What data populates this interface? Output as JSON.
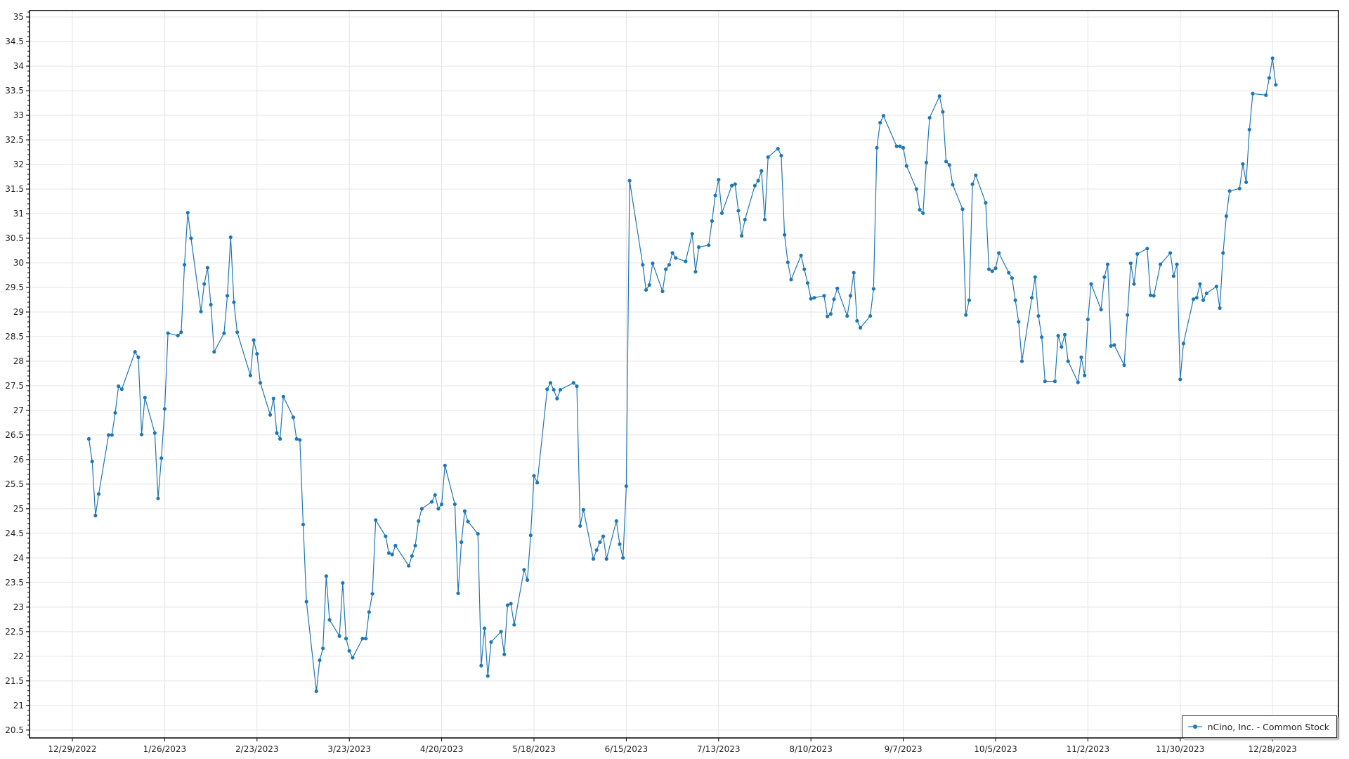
{
  "chart_data": {
    "type": "line",
    "title": "",
    "xlabel": "",
    "ylabel": "",
    "xlim": [
      "2022-12-16",
      "2024-01-17"
    ],
    "ylim": [
      20.34,
      35.13
    ],
    "yticks": [
      "20.5",
      "21",
      "21.5",
      "22",
      "22.5",
      "23",
      "23.5",
      "24",
      "24.5",
      "25",
      "25.5",
      "26",
      "26.5",
      "27",
      "27.5",
      "28",
      "28.5",
      "29",
      "29.5",
      "30",
      "30.5",
      "31",
      "31.5",
      "32",
      "32.5",
      "33",
      "33.5",
      "34",
      "34.5",
      "35"
    ],
    "xticks": [
      {
        "date": "2022-12-29",
        "label": "12/29/2022"
      },
      {
        "date": "2023-01-26",
        "label": "1/26/2023"
      },
      {
        "date": "2023-02-23",
        "label": "2/23/2023"
      },
      {
        "date": "2023-03-23",
        "label": "3/23/2023"
      },
      {
        "date": "2023-04-20",
        "label": "4/20/2023"
      },
      {
        "date": "2023-05-18",
        "label": "5/18/2023"
      },
      {
        "date": "2023-06-15",
        "label": "6/15/2023"
      },
      {
        "date": "2023-07-13",
        "label": "7/13/2023"
      },
      {
        "date": "2023-08-10",
        "label": "8/10/2023"
      },
      {
        "date": "2023-09-07",
        "label": "9/7/2023"
      },
      {
        "date": "2023-10-05",
        "label": "10/5/2023"
      },
      {
        "date": "2023-11-02",
        "label": "11/2/2023"
      },
      {
        "date": "2023-11-30",
        "label": "11/30/2023"
      },
      {
        "date": "2023-12-28",
        "label": "12/28/2023"
      }
    ],
    "grid": true,
    "legend_position": "bottom-right",
    "series": [
      {
        "name": "nCino, Inc. - Common Stock",
        "color": "#1f77b4",
        "points": [
          [
            "2023-01-03",
            26.42
          ],
          [
            "2023-01-04",
            25.96
          ],
          [
            "2023-01-05",
            24.86
          ],
          [
            "2023-01-06",
            25.3
          ],
          [
            "2023-01-09",
            26.5
          ],
          [
            "2023-01-10",
            26.5
          ],
          [
            "2023-01-11",
            26.95
          ],
          [
            "2023-01-12",
            27.49
          ],
          [
            "2023-01-13",
            27.43
          ],
          [
            "2023-01-17",
            28.19
          ],
          [
            "2023-01-18",
            28.08
          ],
          [
            "2023-01-19",
            26.51
          ],
          [
            "2023-01-20",
            27.26
          ],
          [
            "2023-01-23",
            26.54
          ],
          [
            "2023-01-24",
            25.21
          ],
          [
            "2023-01-25",
            26.03
          ],
          [
            "2023-01-26",
            27.03
          ],
          [
            "2023-01-27",
            28.57
          ],
          [
            "2023-01-30",
            28.52
          ],
          [
            "2023-01-31",
            28.59
          ],
          [
            "2023-02-01",
            29.96
          ],
          [
            "2023-02-02",
            31.02
          ],
          [
            "2023-02-03",
            30.5
          ],
          [
            "2023-02-06",
            29.01
          ],
          [
            "2023-02-07",
            29.57
          ],
          [
            "2023-02-08",
            29.9
          ],
          [
            "2023-02-09",
            29.15
          ],
          [
            "2023-02-10",
            28.19
          ],
          [
            "2023-02-13",
            28.57
          ],
          [
            "2023-02-14",
            29.33
          ],
          [
            "2023-02-15",
            30.52
          ],
          [
            "2023-02-16",
            29.2
          ],
          [
            "2023-02-17",
            28.59
          ],
          [
            "2023-02-21",
            27.71
          ],
          [
            "2023-02-22",
            28.43
          ],
          [
            "2023-02-23",
            28.15
          ],
          [
            "2023-02-24",
            27.56
          ],
          [
            "2023-02-27",
            26.91
          ],
          [
            "2023-02-28",
            27.24
          ],
          [
            "2023-03-01",
            26.54
          ],
          [
            "2023-03-02",
            26.42
          ],
          [
            "2023-03-03",
            27.28
          ],
          [
            "2023-03-06",
            26.86
          ],
          [
            "2023-03-07",
            26.42
          ],
          [
            "2023-03-08",
            26.4
          ],
          [
            "2023-03-09",
            24.68
          ],
          [
            "2023-03-10",
            23.11
          ],
          [
            "2023-03-13",
            21.29
          ],
          [
            "2023-03-14",
            21.92
          ],
          [
            "2023-03-15",
            22.16
          ],
          [
            "2023-03-16",
            23.63
          ],
          [
            "2023-03-17",
            22.74
          ],
          [
            "2023-03-20",
            22.41
          ],
          [
            "2023-03-21",
            23.49
          ],
          [
            "2023-03-22",
            22.36
          ],
          [
            "2023-03-23",
            22.11
          ],
          [
            "2023-03-24",
            21.97
          ],
          [
            "2023-03-27",
            22.36
          ],
          [
            "2023-03-28",
            22.36
          ],
          [
            "2023-03-29",
            22.9
          ],
          [
            "2023-03-30",
            23.27
          ],
          [
            "2023-03-31",
            24.77
          ],
          [
            "2023-04-03",
            24.44
          ],
          [
            "2023-04-04",
            24.1
          ],
          [
            "2023-04-05",
            24.07
          ],
          [
            "2023-04-06",
            24.25
          ],
          [
            "2023-04-10",
            23.84
          ],
          [
            "2023-04-11",
            24.04
          ],
          [
            "2023-04-12",
            24.25
          ],
          [
            "2023-04-13",
            24.75
          ],
          [
            "2023-04-14",
            25.0
          ],
          [
            "2023-04-17",
            25.14
          ],
          [
            "2023-04-18",
            25.28
          ],
          [
            "2023-04-19",
            25.0
          ],
          [
            "2023-04-20",
            25.09
          ],
          [
            "2023-04-21",
            25.88
          ],
          [
            "2023-04-24",
            25.09
          ],
          [
            "2023-04-25",
            23.28
          ],
          [
            "2023-04-26",
            24.32
          ],
          [
            "2023-04-27",
            24.95
          ],
          [
            "2023-04-28",
            24.74
          ],
          [
            "2023-05-01",
            24.49
          ],
          [
            "2023-05-02",
            21.81
          ],
          [
            "2023-05-03",
            22.57
          ],
          [
            "2023-05-04",
            21.6
          ],
          [
            "2023-05-05",
            22.29
          ],
          [
            "2023-05-08",
            22.5
          ],
          [
            "2023-05-09",
            22.04
          ],
          [
            "2023-05-10",
            23.04
          ],
          [
            "2023-05-11",
            23.07
          ],
          [
            "2023-05-12",
            22.64
          ],
          [
            "2023-05-15",
            23.76
          ],
          [
            "2023-05-16",
            23.55
          ],
          [
            "2023-05-17",
            24.46
          ],
          [
            "2023-05-18",
            25.67
          ],
          [
            "2023-05-19",
            25.53
          ],
          [
            "2023-05-22",
            27.43
          ],
          [
            "2023-05-23",
            27.56
          ],
          [
            "2023-05-24",
            27.42
          ],
          [
            "2023-05-25",
            27.24
          ],
          [
            "2023-05-26",
            27.42
          ],
          [
            "2023-05-30",
            27.56
          ],
          [
            "2023-05-31",
            27.49
          ],
          [
            "2023-06-01",
            24.65
          ],
          [
            "2023-06-02",
            24.98
          ],
          [
            "2023-06-05",
            23.98
          ],
          [
            "2023-06-06",
            24.16
          ],
          [
            "2023-06-07",
            24.32
          ],
          [
            "2023-06-08",
            24.44
          ],
          [
            "2023-06-09",
            23.98
          ],
          [
            "2023-06-12",
            24.75
          ],
          [
            "2023-06-13",
            24.28
          ],
          [
            "2023-06-14",
            24.0
          ],
          [
            "2023-06-15",
            25.46
          ],
          [
            "2023-06-16",
            31.67
          ],
          [
            "2023-06-20",
            29.96
          ],
          [
            "2023-06-21",
            29.45
          ],
          [
            "2023-06-22",
            29.55
          ],
          [
            "2023-06-23",
            29.99
          ],
          [
            "2023-06-26",
            29.42
          ],
          [
            "2023-06-27",
            29.87
          ],
          [
            "2023-06-28",
            29.96
          ],
          [
            "2023-06-29",
            30.2
          ],
          [
            "2023-06-30",
            30.1
          ],
          [
            "2023-07-03",
            30.03
          ],
          [
            "2023-07-05",
            30.59
          ],
          [
            "2023-07-06",
            29.82
          ],
          [
            "2023-07-07",
            30.32
          ],
          [
            "2023-07-10",
            30.36
          ],
          [
            "2023-07-11",
            30.85
          ],
          [
            "2023-07-12",
            31.37
          ],
          [
            "2023-07-13",
            31.69
          ],
          [
            "2023-07-14",
            31.01
          ],
          [
            "2023-07-17",
            31.57
          ],
          [
            "2023-07-18",
            31.6
          ],
          [
            "2023-07-19",
            31.06
          ],
          [
            "2023-07-20",
            30.55
          ],
          [
            "2023-07-21",
            30.88
          ],
          [
            "2023-07-24",
            31.57
          ],
          [
            "2023-07-25",
            31.67
          ],
          [
            "2023-07-26",
            31.87
          ],
          [
            "2023-07-27",
            30.88
          ],
          [
            "2023-07-28",
            32.15
          ],
          [
            "2023-07-31",
            32.32
          ],
          [
            "2023-08-01",
            32.18
          ],
          [
            "2023-08-02",
            30.57
          ],
          [
            "2023-08-03",
            30.01
          ],
          [
            "2023-08-04",
            29.66
          ],
          [
            "2023-08-07",
            30.15
          ],
          [
            "2023-08-08",
            29.87
          ],
          [
            "2023-08-09",
            29.59
          ],
          [
            "2023-08-10",
            29.27
          ],
          [
            "2023-08-11",
            29.29
          ],
          [
            "2023-08-14",
            29.33
          ],
          [
            "2023-08-15",
            28.91
          ],
          [
            "2023-08-16",
            28.96
          ],
          [
            "2023-08-17",
            29.26
          ],
          [
            "2023-08-18",
            29.48
          ],
          [
            "2023-08-21",
            28.92
          ],
          [
            "2023-08-22",
            29.33
          ],
          [
            "2023-08-23",
            29.8
          ],
          [
            "2023-08-24",
            28.82
          ],
          [
            "2023-08-25",
            28.68
          ],
          [
            "2023-08-28",
            28.92
          ],
          [
            "2023-08-29",
            29.47
          ],
          [
            "2023-08-30",
            32.34
          ],
          [
            "2023-08-31",
            32.85
          ],
          [
            "2023-09-01",
            32.99
          ],
          [
            "2023-09-05",
            32.37
          ],
          [
            "2023-09-06",
            32.37
          ],
          [
            "2023-09-07",
            32.34
          ],
          [
            "2023-09-08",
            31.97
          ],
          [
            "2023-09-11",
            31.5
          ],
          [
            "2023-09-12",
            31.08
          ],
          [
            "2023-09-13",
            31.01
          ],
          [
            "2023-09-14",
            32.04
          ],
          [
            "2023-09-15",
            32.95
          ],
          [
            "2023-09-18",
            33.39
          ],
          [
            "2023-09-19",
            33.07
          ],
          [
            "2023-09-20",
            32.06
          ],
          [
            "2023-09-21",
            31.99
          ],
          [
            "2023-09-22",
            31.59
          ],
          [
            "2023-09-25",
            31.09
          ],
          [
            "2023-09-26",
            28.94
          ],
          [
            "2023-09-27",
            29.24
          ],
          [
            "2023-09-28",
            31.6
          ],
          [
            "2023-09-29",
            31.78
          ],
          [
            "2023-10-02",
            31.22
          ],
          [
            "2023-10-03",
            29.87
          ],
          [
            "2023-10-04",
            29.83
          ],
          [
            "2023-10-05",
            29.89
          ],
          [
            "2023-10-06",
            30.2
          ],
          [
            "2023-10-09",
            29.8
          ],
          [
            "2023-10-10",
            29.69
          ],
          [
            "2023-10-11",
            29.24
          ],
          [
            "2023-10-12",
            28.8
          ],
          [
            "2023-10-13",
            28.0
          ],
          [
            "2023-10-16",
            29.29
          ],
          [
            "2023-10-17",
            29.71
          ],
          [
            "2023-10-18",
            28.92
          ],
          [
            "2023-10-19",
            28.49
          ],
          [
            "2023-10-20",
            27.59
          ],
          [
            "2023-10-23",
            27.59
          ],
          [
            "2023-10-24",
            28.52
          ],
          [
            "2023-10-25",
            28.29
          ],
          [
            "2023-10-26",
            28.54
          ],
          [
            "2023-10-27",
            28.0
          ],
          [
            "2023-10-30",
            27.57
          ],
          [
            "2023-10-31",
            28.08
          ],
          [
            "2023-11-01",
            27.71
          ],
          [
            "2023-11-02",
            28.85
          ],
          [
            "2023-11-03",
            29.57
          ],
          [
            "2023-11-06",
            29.05
          ],
          [
            "2023-11-07",
            29.71
          ],
          [
            "2023-11-08",
            29.97
          ],
          [
            "2023-11-09",
            28.31
          ],
          [
            "2023-11-10",
            28.33
          ],
          [
            "2023-11-13",
            27.92
          ],
          [
            "2023-11-14",
            28.94
          ],
          [
            "2023-11-15",
            29.99
          ],
          [
            "2023-11-16",
            29.57
          ],
          [
            "2023-11-17",
            30.18
          ],
          [
            "2023-11-20",
            30.29
          ],
          [
            "2023-11-21",
            29.34
          ],
          [
            "2023-11-22",
            29.33
          ],
          [
            "2023-11-24",
            29.97
          ],
          [
            "2023-11-27",
            30.2
          ],
          [
            "2023-11-28",
            29.73
          ],
          [
            "2023-11-29",
            29.97
          ],
          [
            "2023-11-30",
            27.63
          ],
          [
            "2023-12-01",
            28.36
          ],
          [
            "2023-12-04",
            29.26
          ],
          [
            "2023-12-05",
            29.29
          ],
          [
            "2023-12-06",
            29.57
          ],
          [
            "2023-12-07",
            29.24
          ],
          [
            "2023-12-08",
            29.38
          ],
          [
            "2023-12-11",
            29.52
          ],
          [
            "2023-12-12",
            29.08
          ],
          [
            "2023-12-13",
            30.2
          ],
          [
            "2023-12-14",
            30.95
          ],
          [
            "2023-12-15",
            31.46
          ],
          [
            "2023-12-18",
            31.51
          ],
          [
            "2023-12-19",
            32.01
          ],
          [
            "2023-12-20",
            31.64
          ],
          [
            "2023-12-21",
            32.71
          ],
          [
            "2023-12-22",
            33.44
          ],
          [
            "2023-12-26",
            33.41
          ],
          [
            "2023-12-27",
            33.76
          ],
          [
            "2023-12-28",
            34.16
          ],
          [
            "2023-12-29",
            33.62
          ]
        ]
      }
    ]
  }
}
